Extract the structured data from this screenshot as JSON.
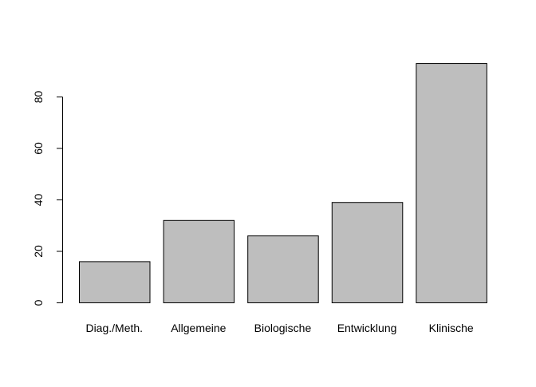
{
  "chart_data": {
    "type": "bar",
    "categories": [
      "Diag./Meth.",
      "Allgemeine",
      "Biologische",
      "Entwicklung",
      "Klinische"
    ],
    "values": [
      16,
      32,
      26,
      39,
      93
    ],
    "title": "",
    "xlabel": "",
    "ylabel": "",
    "yticks": [
      0,
      20,
      40,
      60,
      80
    ],
    "ylim": [
      0,
      96.7
    ],
    "grid": false,
    "bar_color": "#bebebe",
    "border_color": "#000000"
  }
}
